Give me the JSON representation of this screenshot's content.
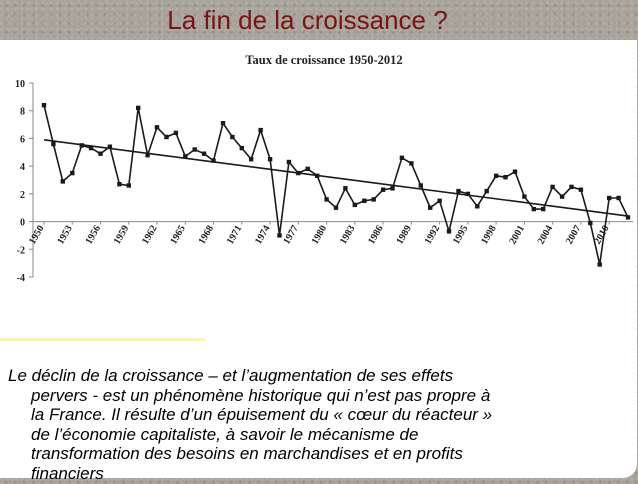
{
  "slide": {
    "title": "La fin de la croissance ?",
    "body_lines": [
      "Le déclin de la croissance – et l’augmentation de ses effets",
      "pervers - est un phénomène historique qui n’est pas propre à",
      "la France. Il résulte d’un épuisement du « cœur du réacteur »",
      "de l’économie capitaliste, à savoir le mécanisme de",
      "transformation des besoins en marchandises et en profits",
      "financiers"
    ]
  },
  "colors": {
    "title": "#7a1414",
    "line": "#1a1a1a",
    "panel": "#ffffff",
    "background": "#a7a29a"
  },
  "chart_data": {
    "type": "line",
    "title": "Taux de croissance 1950-2012",
    "xlabel": "",
    "ylabel": "",
    "x": [
      1950,
      1951,
      1952,
      1953,
      1954,
      1955,
      1956,
      1957,
      1958,
      1959,
      1960,
      1961,
      1962,
      1963,
      1964,
      1965,
      1966,
      1967,
      1968,
      1969,
      1970,
      1971,
      1972,
      1973,
      1974,
      1975,
      1976,
      1977,
      1978,
      1979,
      1980,
      1981,
      1982,
      1983,
      1984,
      1985,
      1986,
      1987,
      1988,
      1989,
      1990,
      1991,
      1992,
      1993,
      1994,
      1995,
      1996,
      1997,
      1998,
      1999,
      2000,
      2001,
      2002,
      2003,
      2004,
      2005,
      2006,
      2007,
      2008,
      2009,
      2010,
      2011,
      2012
    ],
    "series": [
      {
        "values": [
          8.4,
          5.6,
          2.9,
          3.5,
          5.5,
          5.3,
          4.9,
          5.4,
          2.7,
          2.6,
          8.2,
          4.8,
          6.8,
          6.1,
          6.4,
          4.7,
          5.2,
          4.9,
          4.4,
          7.1,
          6.1,
          5.3,
          4.5,
          6.6,
          4.5,
          -1.0,
          4.3,
          3.5,
          3.8,
          3.3,
          1.6,
          1.0,
          2.4,
          1.2,
          1.5,
          1.6,
          2.3,
          2.4,
          4.6,
          4.2,
          2.6,
          1.0,
          1.5,
          -0.7,
          2.2,
          2.0,
          1.1,
          2.2,
          3.3,
          3.2,
          3.6,
          1.8,
          0.9,
          0.9,
          2.5,
          1.8,
          2.5,
          2.3,
          -0.1,
          -3.1,
          1.7,
          1.7,
          0.3
        ]
      }
    ],
    "trendline": {
      "start": [
        1950,
        5.9
      ],
      "end": [
        2012,
        0.4
      ]
    },
    "ylim": [
      -4,
      10
    ],
    "yticks": [
      -4,
      -2,
      0,
      2,
      4,
      6,
      8,
      10
    ],
    "xtick_labels": [
      "1950",
      "1953",
      "1956",
      "1959",
      "1962",
      "1965",
      "1968",
      "1971",
      "1974",
      "1977",
      "1980",
      "1983",
      "1986",
      "1989",
      "1992",
      "1995",
      "1998",
      "2001",
      "2004",
      "2007",
      "2010"
    ],
    "grid": false,
    "legend": "none"
  }
}
